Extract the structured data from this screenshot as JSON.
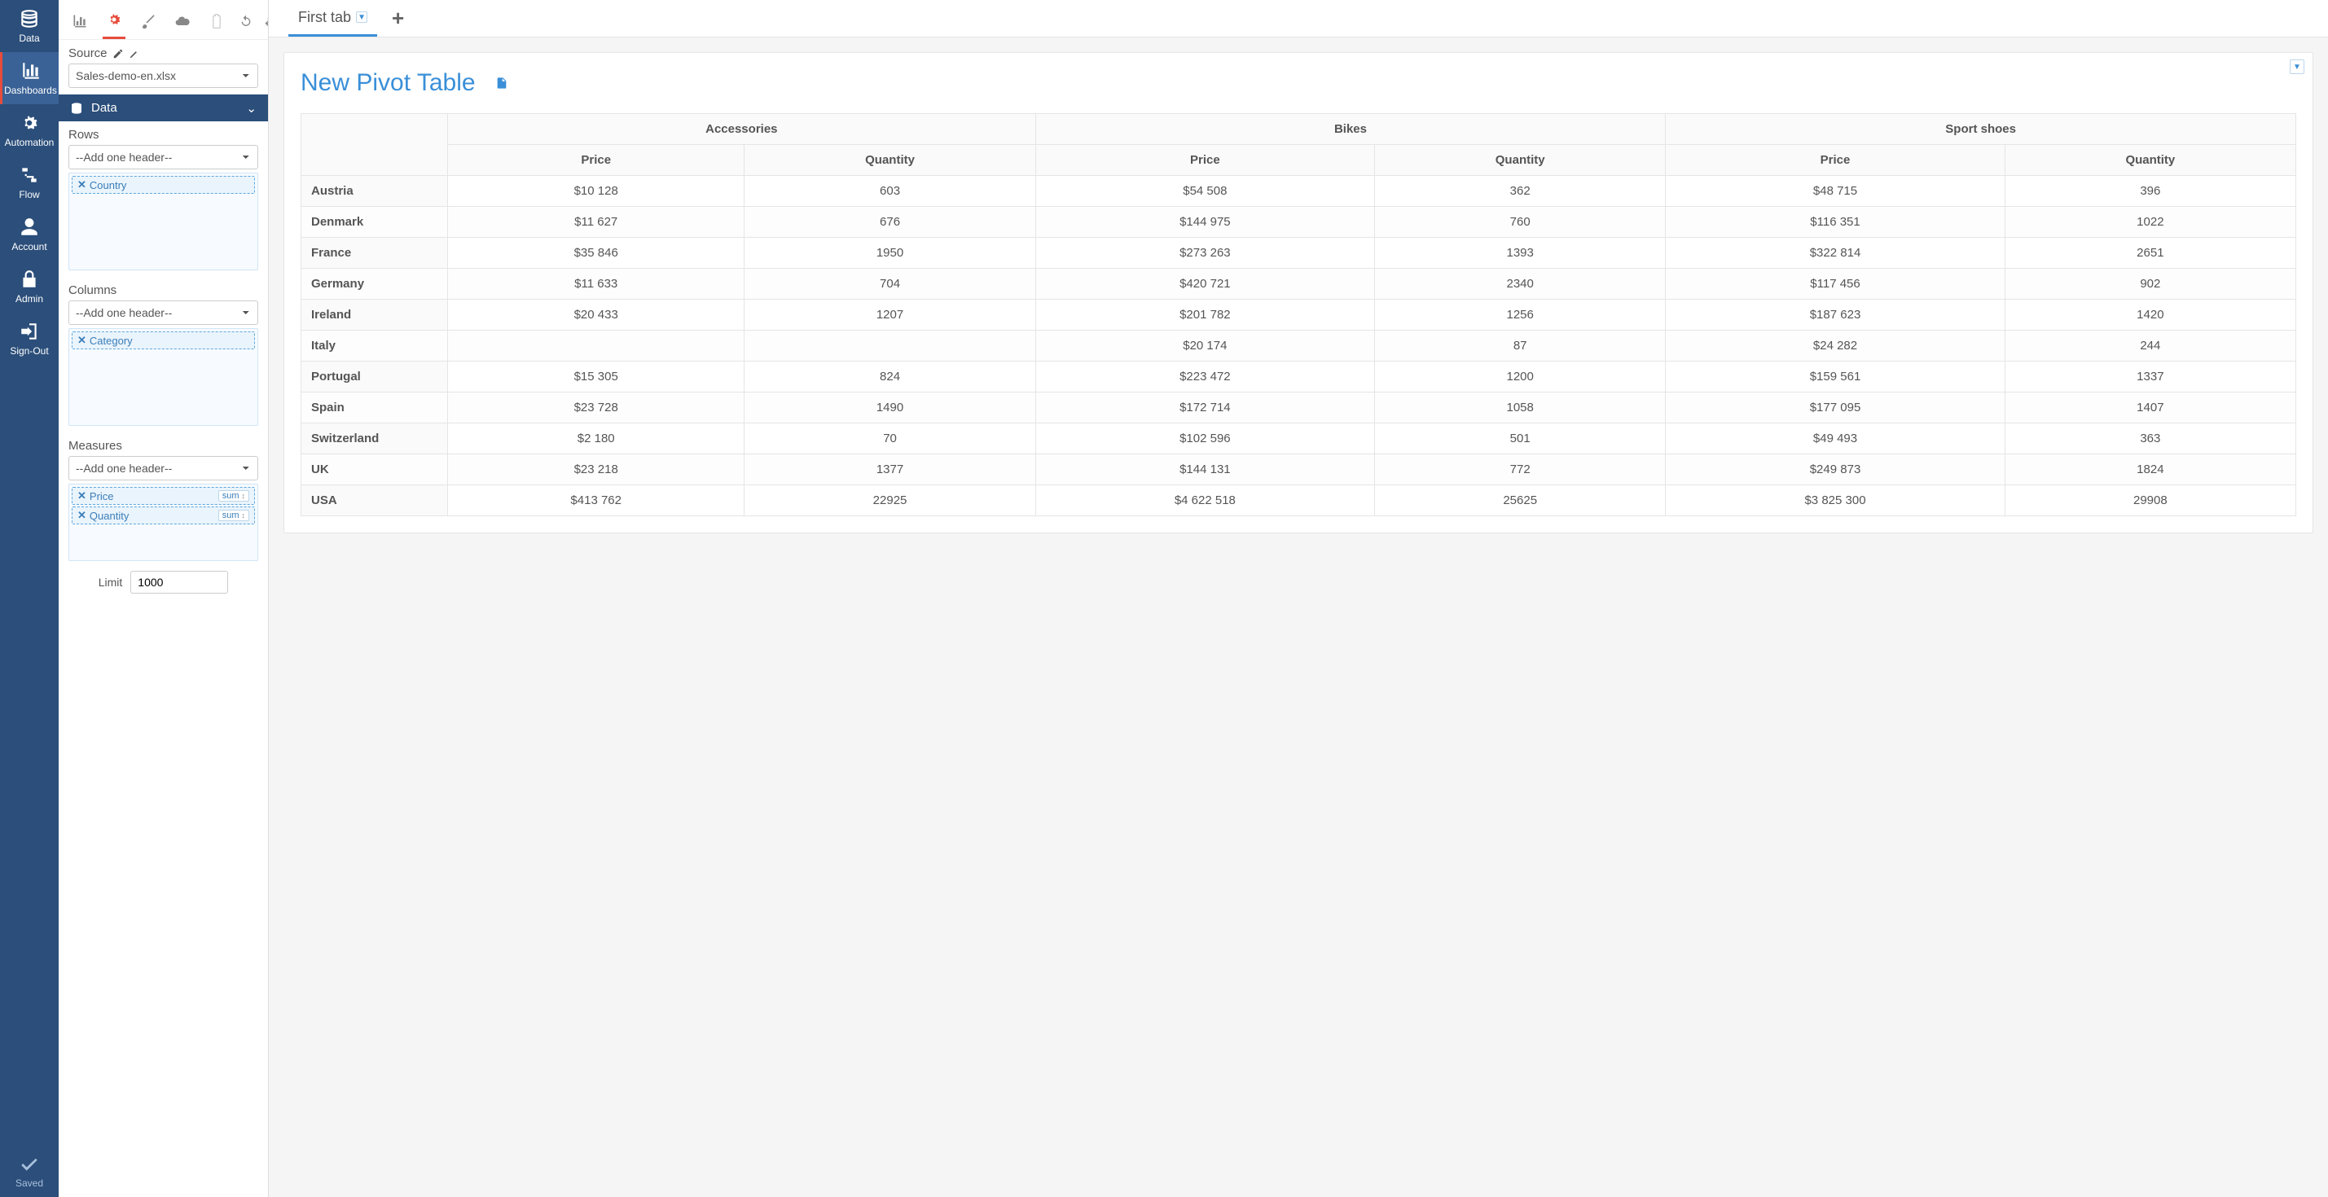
{
  "nav": {
    "items": [
      {
        "key": "data",
        "label": "Data"
      },
      {
        "key": "dashboards",
        "label": "Dashboards"
      },
      {
        "key": "automation",
        "label": "Automation"
      },
      {
        "key": "flow",
        "label": "Flow"
      },
      {
        "key": "account",
        "label": "Account"
      },
      {
        "key": "admin",
        "label": "Admin"
      },
      {
        "key": "sign-out",
        "label": "Sign-Out"
      }
    ],
    "saved_label": "Saved"
  },
  "config": {
    "tabs": [
      "chart-icon",
      "gear-icon",
      "brush-icon",
      "cloud-icon",
      "battery-icon",
      "undo-icon",
      "swap-icon"
    ],
    "active_tab_index": 1,
    "source_label": "Source",
    "source_value": "Sales-demo-en.xlsx",
    "data_header": "Data",
    "rows_label": "Rows",
    "columns_label": "Columns",
    "measures_label": "Measures",
    "add_header_placeholder": "--Add one header--",
    "rows_chips": [
      {
        "label": "Country"
      }
    ],
    "columns_chips": [
      {
        "label": "Category"
      }
    ],
    "measures_chips": [
      {
        "label": "Price",
        "agg": "sum"
      },
      {
        "label": "Quantity",
        "agg": "sum"
      }
    ],
    "limit_label": "Limit",
    "limit_value": "1000"
  },
  "tabs": {
    "first_tab_label": "First tab"
  },
  "pivot": {
    "title": "New Pivot Table",
    "column_groups": [
      "Accessories",
      "Bikes",
      "Sport shoes"
    ],
    "sub_columns": [
      "Price",
      "Quantity"
    ],
    "rows": [
      {
        "label": "Austria",
        "cells": [
          "$10 128",
          "603",
          "$54 508",
          "362",
          "$48 715",
          "396"
        ]
      },
      {
        "label": "Denmark",
        "cells": [
          "$11 627",
          "676",
          "$144 975",
          "760",
          "$116 351",
          "1022"
        ]
      },
      {
        "label": "France",
        "cells": [
          "$35 846",
          "1950",
          "$273 263",
          "1393",
          "$322 814",
          "2651"
        ]
      },
      {
        "label": "Germany",
        "cells": [
          "$11 633",
          "704",
          "$420 721",
          "2340",
          "$117 456",
          "902"
        ]
      },
      {
        "label": "Ireland",
        "cells": [
          "$20 433",
          "1207",
          "$201 782",
          "1256",
          "$187 623",
          "1420"
        ]
      },
      {
        "label": "Italy",
        "cells": [
          "",
          "",
          "$20 174",
          "87",
          "$24 282",
          "244"
        ]
      },
      {
        "label": "Portugal",
        "cells": [
          "$15 305",
          "824",
          "$223 472",
          "1200",
          "$159 561",
          "1337"
        ]
      },
      {
        "label": "Spain",
        "cells": [
          "$23 728",
          "1490",
          "$172 714",
          "1058",
          "$177 095",
          "1407"
        ]
      },
      {
        "label": "Switzerland",
        "cells": [
          "$2 180",
          "70",
          "$102 596",
          "501",
          "$49 493",
          "363"
        ]
      },
      {
        "label": "UK",
        "cells": [
          "$23 218",
          "1377",
          "$144 131",
          "772",
          "$249 873",
          "1824"
        ]
      },
      {
        "label": "USA",
        "cells": [
          "$413 762",
          "22925",
          "$4 622 518",
          "25625",
          "$3 825 300",
          "29908"
        ]
      }
    ]
  },
  "colors": {
    "nav_bg": "#2b4e7a",
    "accent_red": "#e74c3c",
    "accent_blue": "#3a8fd8",
    "chip_border": "#5fa8e0",
    "border": "#e5e5e5"
  }
}
